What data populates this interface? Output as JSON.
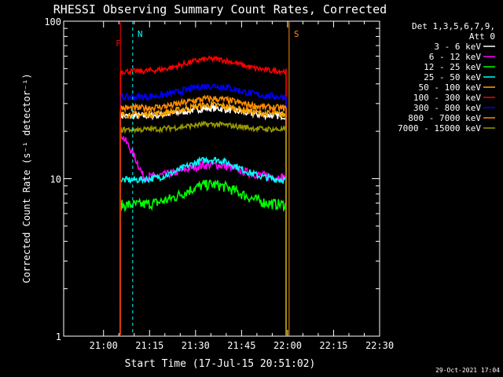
{
  "chart_data": {
    "type": "line",
    "title": "RHESSI Observing Summary Count Rates, Corrected",
    "xlabel": "Start Time (17-Jul-15 20:51:02)",
    "ylabel": "Corrected Count Rate (s⁻¹ detector⁻¹)",
    "ylog": true,
    "ylim": [
      1,
      100
    ],
    "xlim_min_after_start": [
      -4.0,
      99.0
    ],
    "x_ticks": [
      {
        "label": "21:00",
        "min": 9
      },
      {
        "label": "21:15",
        "min": 24
      },
      {
        "label": "21:30",
        "min": 39
      },
      {
        "label": "21:45",
        "min": 54
      },
      {
        "label": "22:00",
        "min": 69
      },
      {
        "label": "22:15",
        "min": 84
      },
      {
        "label": "22:30",
        "min": 99
      }
    ],
    "y_ticks": [
      {
        "label": "1",
        "v": 1
      },
      {
        "label": "10",
        "v": 10
      },
      {
        "label": "100",
        "v": 100
      }
    ],
    "legend_header": [
      "Det 1,3,5,6,7,9,",
      "Att 0"
    ],
    "series": [
      {
        "name": "3 - 6 keV",
        "color": "#ffffff",
        "level": 25.0,
        "start": 14.5,
        "end": 68.5,
        "bump": 0.12,
        "noise": 0.05
      },
      {
        "name": "6 - 12 keV",
        "color": "#ff00ff",
        "level": 10.2,
        "start": 14.5,
        "end": 68.5,
        "bump": 0.2,
        "noise": 0.06,
        "decayFrom": 22
      },
      {
        "name": "12 - 25 keV",
        "color": "#00ff00",
        "level": 6.8,
        "start": 14.5,
        "end": 68.5,
        "bump": 0.35,
        "noise": 0.08
      },
      {
        "name": "25 - 50 keV",
        "color": "#00ffff",
        "level": 9.8,
        "start": 14.5,
        "end": 68.5,
        "bump": 0.35,
        "noise": 0.05
      },
      {
        "name": "50 - 100 keV",
        "color": "#ffa500",
        "level": 25.5,
        "start": 14.5,
        "end": 68.5,
        "bump": 0.15,
        "noise": 0.05
      },
      {
        "name": "100 - 300 keV",
        "color": "#ff0000",
        "level": 48.0,
        "start": 14.5,
        "end": 68.5,
        "bump": 0.2,
        "noise": 0.04
      },
      {
        "name": "300 - 800 keV",
        "color": "#0000ff",
        "level": 33.0,
        "start": 14.5,
        "end": 68.5,
        "bump": 0.18,
        "noise": 0.05
      },
      {
        "name": "800 - 7000 keV",
        "color": "#ff8c00",
        "level": 28.0,
        "start": 14.5,
        "end": 68.5,
        "bump": 0.15,
        "noise": 0.05
      },
      {
        "name": "7000 - 15000 keV",
        "color": "#999900",
        "level": 20.5,
        "start": 14.5,
        "end": 68.5,
        "bump": 0.08,
        "noise": 0.04
      }
    ],
    "flags": [
      {
        "label": "N",
        "color": "#00ffff",
        "min": 18.5,
        "style": "dashed"
      },
      {
        "label": "F",
        "color": "#ff0000",
        "min": 14.5,
        "style": "solid"
      },
      {
        "label": "S",
        "color": "#ff8c00",
        "min": 69.5,
        "style": "solid"
      }
    ],
    "timestamp": "29-Oct-2021 17:04"
  }
}
